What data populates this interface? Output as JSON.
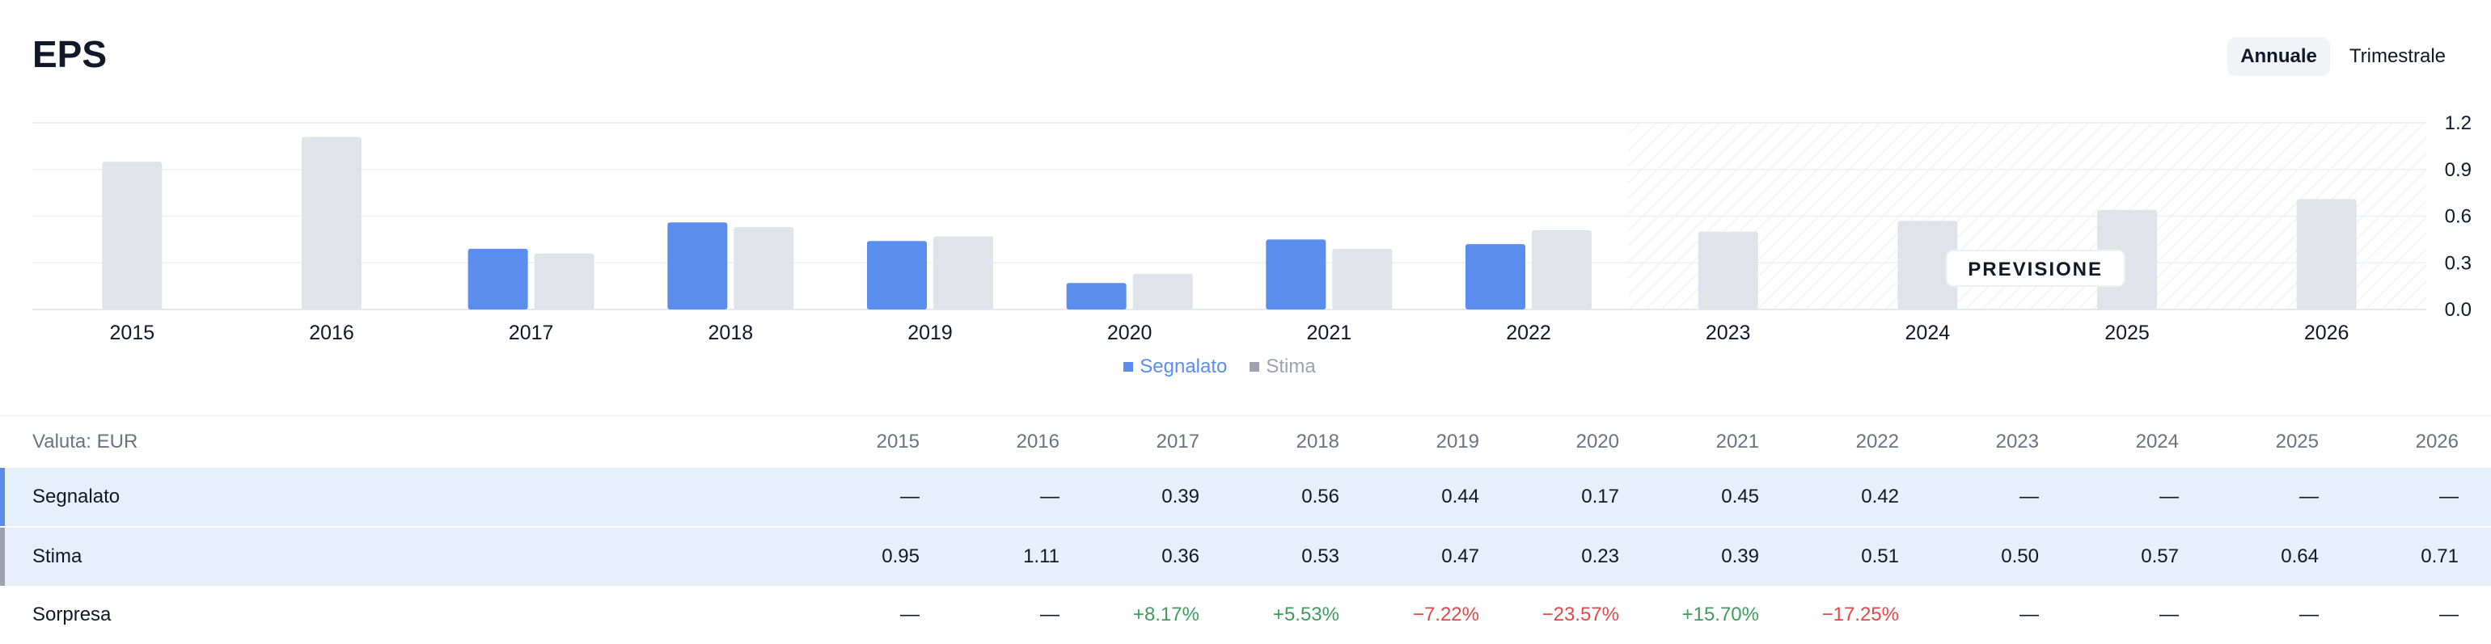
{
  "header": {
    "title": "EPS",
    "tabs": [
      {
        "label": "Annuale",
        "active": true
      },
      {
        "label": "Trimestrale",
        "active": false
      }
    ]
  },
  "chart_data": {
    "type": "bar",
    "categories": [
      "2015",
      "2016",
      "2017",
      "2018",
      "2019",
      "2020",
      "2021",
      "2022",
      "2023",
      "2024",
      "2025",
      "2026"
    ],
    "series": [
      {
        "name": "Segnalato",
        "color": "#5b8def",
        "values": [
          null,
          null,
          0.39,
          0.56,
          0.44,
          0.17,
          0.45,
          0.42,
          null,
          null,
          null,
          null
        ]
      },
      {
        "name": "Stima",
        "color": "#e0e3e9",
        "values": [
          0.95,
          1.11,
          0.36,
          0.53,
          0.47,
          0.23,
          0.39,
          0.51,
          0.5,
          0.57,
          0.64,
          0.71
        ]
      }
    ],
    "ylim": [
      0,
      1.2
    ],
    "yticks": [
      "0.0",
      "0.3",
      "0.6",
      "0.9",
      "1.2"
    ],
    "yaxis_position": "right",
    "forecast_start": "2023",
    "forecast_label": "PREVISIONE",
    "legend": [
      "Segnalato",
      "Stima"
    ],
    "legend_position": "bottom"
  },
  "table": {
    "currency_label": "Valuta: EUR",
    "years": [
      "2015",
      "2016",
      "2017",
      "2018",
      "2019",
      "2020",
      "2021",
      "2022",
      "2023",
      "2024",
      "2025",
      "2026"
    ],
    "rows": [
      {
        "label": "Segnalato",
        "cells": [
          "—",
          "—",
          "0.39",
          "0.56",
          "0.44",
          "0.17",
          "0.45",
          "0.42",
          "—",
          "—",
          "—",
          "—"
        ]
      },
      {
        "label": "Stima",
        "cells": [
          "0.95",
          "1.11",
          "0.36",
          "0.53",
          "0.47",
          "0.23",
          "0.39",
          "0.51",
          "0.50",
          "0.57",
          "0.64",
          "0.71"
        ]
      },
      {
        "label": "Sorpresa",
        "cells": [
          "—",
          "—",
          "+8.17%",
          "+5.53%",
          "−7.22%",
          "−23.57%",
          "+15.70%",
          "−17.25%",
          "—",
          "—",
          "—",
          "—"
        ]
      }
    ]
  }
}
